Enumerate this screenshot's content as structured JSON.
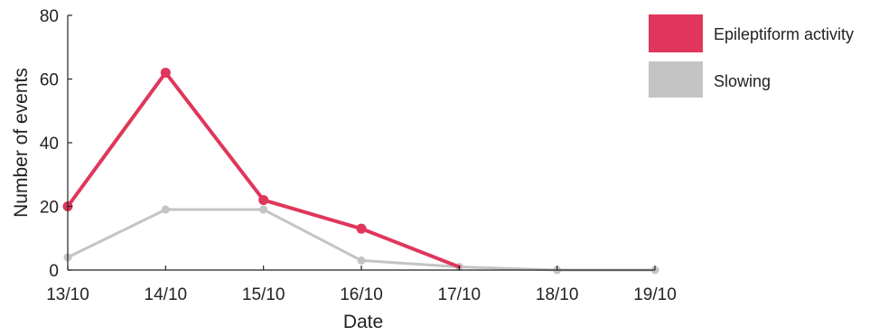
{
  "chart_data": {
    "type": "line",
    "title": "",
    "xlabel": "Date",
    "ylabel": "Number of events",
    "categories": [
      "13/10",
      "14/10",
      "15/10",
      "16/10",
      "17/10",
      "18/10",
      "19/10"
    ],
    "ylim": [
      0,
      80
    ],
    "yticks": [
      "0",
      "20",
      "40",
      "60",
      "80"
    ],
    "grid": false,
    "legend_position": "top-right",
    "series": [
      {
        "name": "Epileptiform activity",
        "color": "#e0365b",
        "values": [
          20,
          62,
          22,
          13,
          1,
          null,
          null
        ]
      },
      {
        "name": "Slowing",
        "color": "#c4c4c4",
        "values": [
          4,
          19,
          19,
          3,
          1,
          0,
          0
        ]
      }
    ]
  }
}
